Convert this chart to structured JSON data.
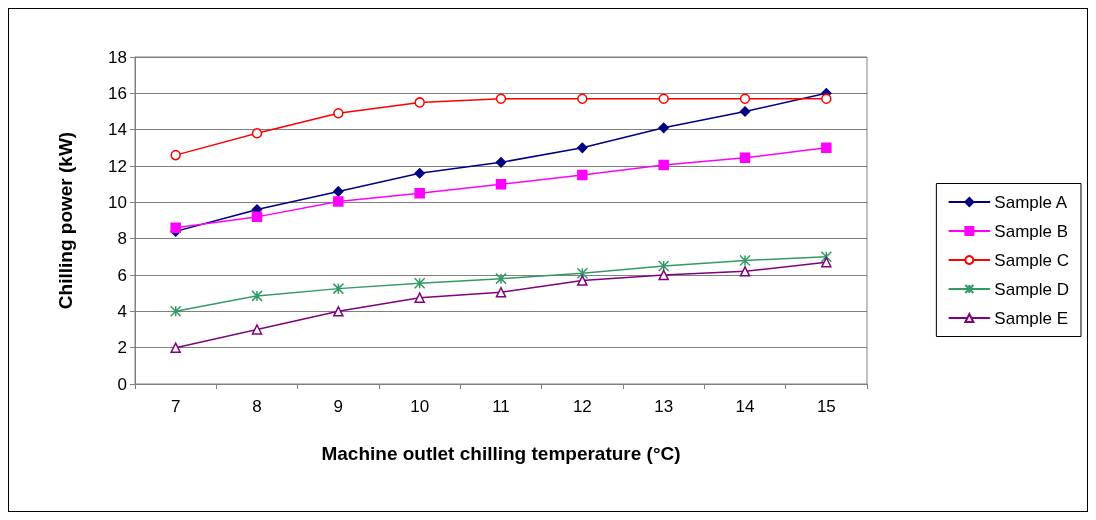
{
  "chart_data": {
    "type": "line",
    "xlabel": "Machine outlet chilling temperature (°C)",
    "ylabel": "Chilling power (kW)",
    "categories": [
      "7",
      "8",
      "9",
      "10",
      "11",
      "12",
      "13",
      "14",
      "15"
    ],
    "ylim": [
      0,
      18
    ],
    "yticks": [
      0,
      2,
      4,
      6,
      8,
      10,
      12,
      14,
      16,
      18
    ],
    "grid": "y",
    "legend": "right",
    "series": [
      {
        "name": "Sample A",
        "color": "#000080",
        "marker": "diamond",
        "values": [
          8.4,
          9.6,
          10.6,
          11.6,
          12.2,
          13.0,
          14.1,
          15.0,
          16.0
        ]
      },
      {
        "name": "Sample B",
        "color": "#ff00ff",
        "marker": "square",
        "values": [
          8.6,
          9.2,
          10.05,
          10.5,
          11.0,
          11.5,
          12.05,
          12.45,
          13.0
        ]
      },
      {
        "name": "Sample C",
        "color": "#ff0000",
        "marker": "circle",
        "values": [
          12.6,
          13.8,
          14.9,
          15.5,
          15.7,
          15.7,
          15.7,
          15.7,
          15.7
        ]
      },
      {
        "name": "Sample D",
        "color": "#339966",
        "marker": "cross",
        "values": [
          4.0,
          4.85,
          5.25,
          5.55,
          5.8,
          6.1,
          6.5,
          6.8,
          7.0
        ]
      },
      {
        "name": "Sample E",
        "color": "#800080",
        "marker": "triangle",
        "values": [
          2.0,
          3.0,
          4.0,
          4.75,
          5.05,
          5.7,
          6.0,
          6.2,
          6.7
        ]
      }
    ]
  }
}
